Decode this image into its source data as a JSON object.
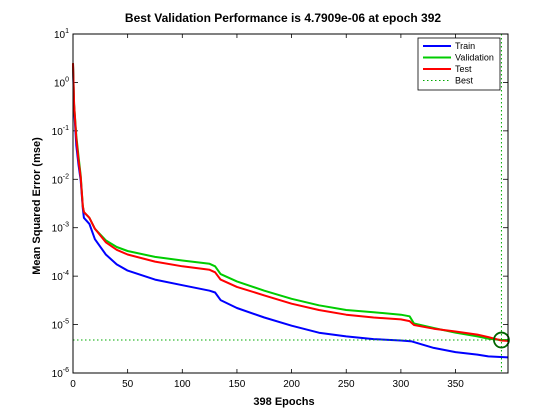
{
  "chart_data": {
    "type": "line",
    "title": "Best Validation Performance is 4.7909e-06 at epoch 392",
    "xlabel": "398 Epochs",
    "ylabel": "Mean Squared Error  (mse)",
    "xlim": [
      0,
      398
    ],
    "ylim": [
      1e-06,
      10
    ],
    "yscale": "log",
    "x_ticks": [
      0,
      50,
      100,
      150,
      200,
      250,
      300,
      350
    ],
    "y_ticks": [
      {
        "base": "10",
        "exp": "-6",
        "value": 1e-06
      },
      {
        "base": "10",
        "exp": "-5",
        "value": 1e-05
      },
      {
        "base": "10",
        "exp": "-4",
        "value": 0.0001
      },
      {
        "base": "10",
        "exp": "-3",
        "value": 0.001
      },
      {
        "base": "10",
        "exp": "-2",
        "value": 0.01
      },
      {
        "base": "10",
        "exp": "-1",
        "value": 0.1
      },
      {
        "base": "10",
        "exp": "0",
        "value": 1
      },
      {
        "base": "10",
        "exp": "1",
        "value": 10
      }
    ],
    "legend_position": "top-right",
    "series": [
      {
        "name": "Train",
        "color": "#0000ff",
        "points": [
          [
            0,
            2.2
          ],
          [
            1,
            0.3
          ],
          [
            2,
            0.12
          ],
          [
            3,
            0.05
          ],
          [
            5,
            0.02
          ],
          [
            7,
            0.0095
          ],
          [
            9,
            0.0025
          ],
          [
            10,
            0.0016
          ],
          [
            15,
            0.0012
          ],
          [
            20,
            0.00058
          ],
          [
            30,
            0.00028
          ],
          [
            40,
            0.000175
          ],
          [
            50,
            0.00013
          ],
          [
            75,
            8.5e-05
          ],
          [
            100,
            6.5e-05
          ],
          [
            125,
            5e-05
          ],
          [
            130,
            4.6e-05
          ],
          [
            135,
            3.2e-05
          ],
          [
            150,
            2.2e-05
          ],
          [
            175,
            1.4e-05
          ],
          [
            200,
            9.5e-06
          ],
          [
            225,
            6.8e-06
          ],
          [
            250,
            5.7e-06
          ],
          [
            275,
            5e-06
          ],
          [
            300,
            4.7e-06
          ],
          [
            310,
            4.5e-06
          ],
          [
            330,
            3.3e-06
          ],
          [
            350,
            2.7e-06
          ],
          [
            370,
            2.4e-06
          ],
          [
            380,
            2.2e-06
          ],
          [
            398,
            2.1e-06
          ]
        ]
      },
      {
        "name": "Validation",
        "color": "#00cc00",
        "points": [
          [
            0,
            2.5
          ],
          [
            1,
            0.35
          ],
          [
            3,
            0.08
          ],
          [
            5,
            0.03
          ],
          [
            7,
            0.012
          ],
          [
            9,
            0.0028
          ],
          [
            10,
            0.0021
          ],
          [
            15,
            0.0016
          ],
          [
            20,
            0.00095
          ],
          [
            30,
            0.00055
          ],
          [
            40,
            0.0004
          ],
          [
            50,
            0.00033
          ],
          [
            75,
            0.00025
          ],
          [
            100,
            0.00021
          ],
          [
            125,
            0.00018
          ],
          [
            130,
            0.00016
          ],
          [
            135,
            0.00011
          ],
          [
            150,
            7.8e-05
          ],
          [
            175,
            5e-05
          ],
          [
            200,
            3.4e-05
          ],
          [
            225,
            2.5e-05
          ],
          [
            250,
            2e-05
          ],
          [
            275,
            1.8e-05
          ],
          [
            300,
            1.6e-05
          ],
          [
            308,
            1.48e-05
          ],
          [
            312,
            1.05e-05
          ],
          [
            330,
            8.5e-06
          ],
          [
            350,
            6.8e-06
          ],
          [
            370,
            5.7e-06
          ],
          [
            380,
            5.1e-06
          ],
          [
            392,
            4.7909e-06
          ],
          [
            398,
            4.8e-06
          ]
        ]
      },
      {
        "name": "Test",
        "color": "#ff0000",
        "points": [
          [
            0,
            2.5
          ],
          [
            1,
            0.35
          ],
          [
            3,
            0.07
          ],
          [
            5,
            0.025
          ],
          [
            7,
            0.011
          ],
          [
            9,
            0.0028
          ],
          [
            10,
            0.0021
          ],
          [
            15,
            0.0016
          ],
          [
            20,
            0.00095
          ],
          [
            30,
            0.0005
          ],
          [
            40,
            0.00035
          ],
          [
            50,
            0.00028
          ],
          [
            75,
            0.0002
          ],
          [
            100,
            0.00016
          ],
          [
            125,
            0.000135
          ],
          [
            130,
            0.00012
          ],
          [
            135,
            8.5e-05
          ],
          [
            150,
            6e-05
          ],
          [
            175,
            4e-05
          ],
          [
            200,
            2.7e-05
          ],
          [
            225,
            2e-05
          ],
          [
            250,
            1.6e-05
          ],
          [
            275,
            1.4e-05
          ],
          [
            300,
            1.28e-05
          ],
          [
            308,
            1.18e-05
          ],
          [
            312,
            9.8e-06
          ],
          [
            330,
            8.2e-06
          ],
          [
            350,
            7.2e-06
          ],
          [
            370,
            6.2e-06
          ],
          [
            380,
            5.5e-06
          ],
          [
            392,
            4.7e-06
          ],
          [
            398,
            4.6e-06
          ]
        ]
      }
    ],
    "best": {
      "name": "Best",
      "epoch": 392,
      "value": 4.7909e-06,
      "color": "#00aa00"
    }
  }
}
